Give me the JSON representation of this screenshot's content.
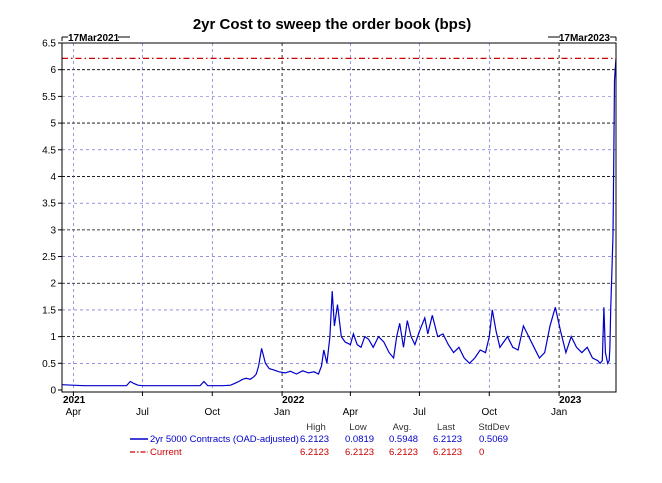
{
  "chart_data": {
    "type": "line",
    "title": "2yr Cost to sweep the order book (bps)",
    "start_label": "17Mar2021",
    "end_label": "17Mar2023",
    "x_range": [
      "2021-03-17",
      "2023-03-17"
    ],
    "ylim": [
      0,
      6.5
    ],
    "yticks": [
      "0",
      "0.5",
      "1",
      "1.5",
      "2",
      "2.5",
      "3",
      "3.5",
      "4",
      "4.5",
      "5",
      "5.5",
      "6",
      "6.5"
    ],
    "month_ticks": [
      {
        "label": "Apr",
        "date": "2021-04-01"
      },
      {
        "label": "Jul",
        "date": "2021-07-01"
      },
      {
        "label": "Oct",
        "date": "2021-10-01"
      },
      {
        "label": "Jan",
        "date": "2022-01-01"
      },
      {
        "label": "Apr",
        "date": "2022-04-01"
      },
      {
        "label": "Jul",
        "date": "2022-07-01"
      },
      {
        "label": "Oct",
        "date": "2022-10-01"
      },
      {
        "label": "Jan",
        "date": "2023-01-01"
      }
    ],
    "year_labels": [
      {
        "label": "2021",
        "date": "2021-03-17"
      },
      {
        "label": "2022",
        "date": "2022-01-01"
      },
      {
        "label": "2023",
        "date": "2023-01-01"
      }
    ],
    "grid": true,
    "stats_headers": [
      "High",
      "Low",
      "Avg.",
      "Last",
      "StdDev"
    ],
    "series": [
      {
        "name": "2yr 5000 Contracts (OAD-adjusted)",
        "color": "#0000cc",
        "style": "solid",
        "stats": [
          "6.2123",
          "0.0819",
          "0.5948",
          "6.2123",
          "0.5069"
        ],
        "x": [
          "2021-03-17",
          "2021-03-31",
          "2021-04-15",
          "2021-05-01",
          "2021-05-15",
          "2021-06-01",
          "2021-06-10",
          "2021-06-15",
          "2021-06-20",
          "2021-06-25",
          "2021-07-01",
          "2021-07-10",
          "2021-07-20",
          "2021-08-01",
          "2021-08-15",
          "2021-09-01",
          "2021-09-15",
          "2021-09-20",
          "2021-09-25",
          "2021-10-01",
          "2021-10-15",
          "2021-10-25",
          "2021-10-30",
          "2021-11-05",
          "2021-11-10",
          "2021-11-15",
          "2021-11-20",
          "2021-11-25",
          "2021-11-28",
          "2021-12-01",
          "2021-12-05",
          "2021-12-10",
          "2021-12-15",
          "2021-12-20",
          "2021-12-28",
          "2022-01-05",
          "2022-01-12",
          "2022-01-20",
          "2022-01-28",
          "2022-02-05",
          "2022-02-12",
          "2022-02-18",
          "2022-02-22",
          "2022-02-25",
          "2022-03-01",
          "2022-03-05",
          "2022-03-08",
          "2022-03-11",
          "2022-03-15",
          "2022-03-20",
          "2022-03-25",
          "2022-04-01",
          "2022-04-05",
          "2022-04-10",
          "2022-04-15",
          "2022-04-20",
          "2022-04-25",
          "2022-05-01",
          "2022-05-08",
          "2022-05-15",
          "2022-05-22",
          "2022-05-28",
          "2022-06-01",
          "2022-06-05",
          "2022-06-10",
          "2022-06-15",
          "2022-06-20",
          "2022-06-25",
          "2022-07-01",
          "2022-07-08",
          "2022-07-12",
          "2022-07-18",
          "2022-07-25",
          "2022-08-01",
          "2022-08-08",
          "2022-08-15",
          "2022-08-22",
          "2022-08-29",
          "2022-09-05",
          "2022-09-12",
          "2022-09-19",
          "2022-09-26",
          "2022-10-01",
          "2022-10-05",
          "2022-10-10",
          "2022-10-15",
          "2022-10-20",
          "2022-10-25",
          "2022-11-01",
          "2022-11-08",
          "2022-11-15",
          "2022-11-22",
          "2022-11-29",
          "2022-12-06",
          "2022-12-13",
          "2022-12-20",
          "2022-12-27",
          "2023-01-03",
          "2023-01-10",
          "2023-01-17",
          "2023-01-24",
          "2023-01-31",
          "2023-02-07",
          "2023-02-14",
          "2023-02-21",
          "2023-02-24",
          "2023-02-27",
          "2023-03-01",
          "2023-03-03",
          "2023-03-06",
          "2023-03-08",
          "2023-03-09",
          "2023-03-10",
          "2023-03-13",
          "2023-03-14",
          "2023-03-15",
          "2023-03-16",
          "2023-03-17"
        ],
        "y": [
          0.1,
          0.09,
          0.08,
          0.08,
          0.08,
          0.08,
          0.08,
          0.16,
          0.12,
          0.09,
          0.08,
          0.08,
          0.08,
          0.08,
          0.08,
          0.08,
          0.08,
          0.16,
          0.08,
          0.08,
          0.08,
          0.09,
          0.12,
          0.16,
          0.2,
          0.22,
          0.2,
          0.25,
          0.3,
          0.45,
          0.78,
          0.5,
          0.4,
          0.38,
          0.34,
          0.32,
          0.35,
          0.3,
          0.36,
          0.32,
          0.34,
          0.3,
          0.45,
          0.75,
          0.5,
          1.0,
          1.85,
          1.2,
          1.6,
          1.0,
          0.9,
          0.85,
          1.05,
          0.85,
          0.8,
          1.0,
          0.95,
          0.8,
          1.0,
          0.9,
          0.7,
          0.6,
          1.0,
          1.25,
          0.8,
          1.3,
          1.0,
          0.85,
          1.1,
          1.35,
          1.05,
          1.4,
          1.0,
          1.05,
          0.85,
          0.7,
          0.8,
          0.6,
          0.5,
          0.6,
          0.75,
          0.7,
          1.0,
          1.5,
          1.1,
          0.8,
          0.9,
          1.0,
          0.8,
          0.75,
          1.2,
          1.0,
          0.8,
          0.6,
          0.7,
          1.2,
          1.55,
          1.1,
          0.7,
          1.0,
          0.8,
          0.7,
          0.8,
          0.6,
          0.55,
          0.5,
          0.55,
          1.55,
          0.7,
          0.5,
          0.55,
          0.8,
          1.5,
          2.9,
          4.2,
          5.8,
          6.0,
          6.2123
        ]
      },
      {
        "name": "Current",
        "color": "#cc0000",
        "style": "dashdot",
        "value": 6.2123,
        "stats": [
          "6.2123",
          "6.2123",
          "6.2123",
          "6.2123",
          "0"
        ]
      }
    ]
  }
}
